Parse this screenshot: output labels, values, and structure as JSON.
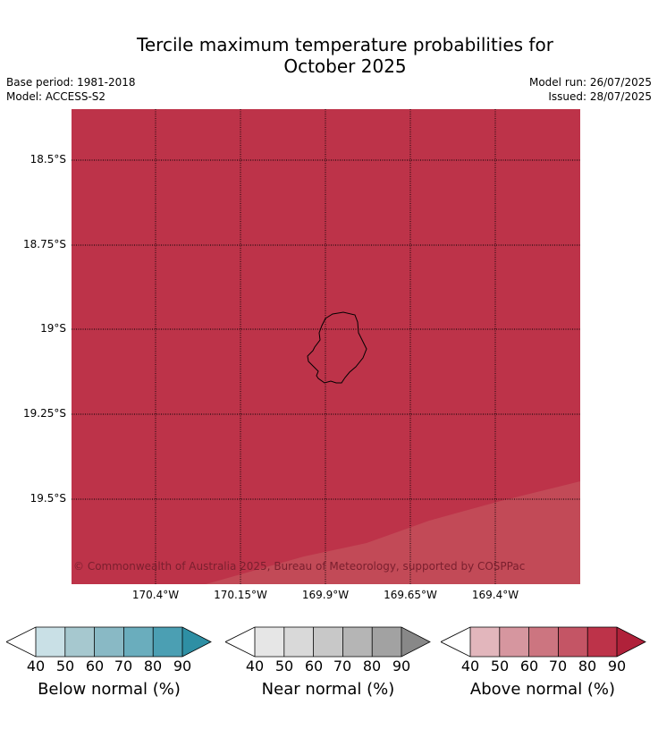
{
  "title_line1": "Tercile maximum temperature probabilities for",
  "title_line2": "October 2025",
  "meta": {
    "base_period": "Base period: 1981-2018",
    "model": "Model: ACCESS-S2",
    "model_run": "Model run: 26/07/2025",
    "issued": "Issued: 28/07/2025"
  },
  "map": {
    "lat_labels": [
      "18.5°S",
      "18.75°S",
      "19°S",
      "19.25°S",
      "19.5°S"
    ],
    "lon_labels": [
      "170.4°W",
      "170.15°W",
      "169.9°W",
      "169.65°W",
      "169.4°W"
    ],
    "main_fill_color": "#bd3349",
    "secondary_fill_color": "#c24a57",
    "copyright": "© Commonwealth of Australia 2025, Bureau of Meteorology, supported by COSPPac",
    "island": "coastline-outline"
  },
  "colorbars": [
    {
      "label": "Below normal (%)",
      "ticks": [
        "40",
        "50",
        "60",
        "70",
        "80",
        "90"
      ],
      "colors": [
        "#ffffff",
        "#c9e0e6",
        "#a6c8cf",
        "#89b9c5",
        "#6aadbd",
        "#4b9fb3",
        "#2e8fa4"
      ]
    },
    {
      "label": "Near normal (%)",
      "ticks": [
        "40",
        "50",
        "60",
        "70",
        "80",
        "90"
      ],
      "colors": [
        "#ffffff",
        "#e6e6e6",
        "#d9d9d9",
        "#c8c8c8",
        "#b5b5b5",
        "#a2a2a2",
        "#888888"
      ]
    },
    {
      "label": "Above normal (%)",
      "ticks": [
        "40",
        "50",
        "60",
        "70",
        "80",
        "90"
      ],
      "colors": [
        "#ffffff",
        "#e2b6bc",
        "#d6969f",
        "#cc7580",
        "#c45565",
        "#bd3349",
        "#b0213a"
      ]
    }
  ]
}
